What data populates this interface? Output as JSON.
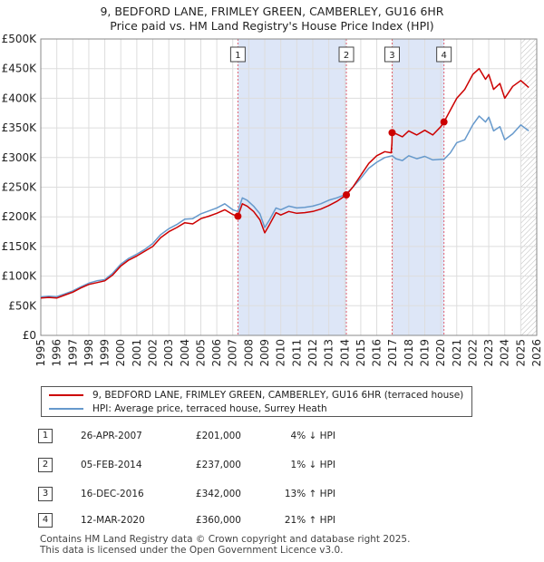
{
  "title": "9, BEDFORD LANE, FRIMLEY GREEN, CAMBERLEY, GU16 6HR",
  "subtitle": "Price paid vs. HM Land Registry's House Price Index (HPI)",
  "legend": {
    "property_label": "9, BEDFORD LANE, FRIMLEY GREEN, CAMBERLEY, GU16 6HR (terraced house)",
    "hpi_label": "HPI: Average price, terraced house, Surrey Heath"
  },
  "colors": {
    "property": "#cc0000",
    "hpi": "#6699cc",
    "shade": "#dde6f7",
    "grid": "#dddddd"
  },
  "transactions": [
    {
      "num": "1",
      "date": "26-APR-2007",
      "price": "£201,000",
      "hpi": "4% ↓ HPI"
    },
    {
      "num": "2",
      "date": "05-FEB-2014",
      "price": "£237,000",
      "hpi": "1% ↓ HPI"
    },
    {
      "num": "3",
      "date": "16-DEC-2016",
      "price": "£342,000",
      "hpi": "13% ↑ HPI"
    },
    {
      "num": "4",
      "date": "12-MAR-2020",
      "price": "£360,000",
      "hpi": "21% ↑ HPI"
    }
  ],
  "footer": {
    "line1": "Contains HM Land Registry data © Crown copyright and database right 2025.",
    "line2": "This data is licensed under the Open Government Licence v3.0."
  },
  "chart_data": {
    "type": "line",
    "xlim": [
      1995,
      2026
    ],
    "ylim": [
      0,
      500000
    ],
    "x_ticks": [
      "1995",
      "1996",
      "1997",
      "1998",
      "1999",
      "2000",
      "2001",
      "2002",
      "2003",
      "2004",
      "2005",
      "2006",
      "2007",
      "2008",
      "2009",
      "2010",
      "2011",
      "2012",
      "2013",
      "2014",
      "2015",
      "2016",
      "2017",
      "2018",
      "2019",
      "2020",
      "2021",
      "2022",
      "2023",
      "2024",
      "2025",
      "2026"
    ],
    "y_ticks": [
      {
        "value": 0,
        "label": "£0"
      },
      {
        "value": 50000,
        "label": "£50K"
      },
      {
        "value": 100000,
        "label": "£100K"
      },
      {
        "value": 150000,
        "label": "£150K"
      },
      {
        "value": 200000,
        "label": "£200K"
      },
      {
        "value": 250000,
        "label": "£250K"
      },
      {
        "value": 300000,
        "label": "£300K"
      },
      {
        "value": 350000,
        "label": "£350K"
      },
      {
        "value": 400000,
        "label": "£400K"
      },
      {
        "value": 450000,
        "label": "£450K"
      },
      {
        "value": 500000,
        "label": "£500K"
      }
    ],
    "shaded_periods": [
      [
        2007.32,
        2014.1
      ],
      [
        2016.96,
        2020.2
      ]
    ],
    "sale_markers": [
      {
        "label": "1",
        "x": 2007.32,
        "y": 201000
      },
      {
        "label": "2",
        "x": 2014.1,
        "y": 237000
      },
      {
        "label": "3",
        "x": 2016.96,
        "y": 342000
      },
      {
        "label": "4",
        "x": 2020.2,
        "y": 360000
      }
    ],
    "hatch_from": 2025.0,
    "series": [
      {
        "name": "HPI: Average price, terraced house, Surrey Heath",
        "x": [
          1995,
          1995.5,
          1996,
          1996.5,
          1997,
          1997.5,
          1998,
          1998.5,
          1999,
          1999.5,
          2000,
          2000.5,
          2001,
          2001.5,
          2002,
          2002.5,
          2003,
          2003.5,
          2004,
          2004.5,
          2005,
          2005.5,
          2006,
          2006.5,
          2007,
          2007.32,
          2007.6,
          2007.9,
          2008.3,
          2008.7,
          2009.0,
          2009.3,
          2009.7,
          2010.0,
          2010.5,
          2011,
          2011.5,
          2012,
          2012.5,
          2013,
          2013.5,
          2014,
          2014.1,
          2014.5,
          2015,
          2015.5,
          2016,
          2016.5,
          2016.96,
          2017.2,
          2017.6,
          2018,
          2018.5,
          2019,
          2019.5,
          2020,
          2020.2,
          2020.6,
          2021,
          2021.5,
          2022,
          2022.4,
          2022.8,
          2023.0,
          2023.3,
          2023.7,
          2024,
          2024.5,
          2025,
          2025.5
        ],
        "y": [
          65000,
          66000,
          65500,
          70000,
          75000,
          82000,
          88000,
          92000,
          94000,
          105000,
          120000,
          130000,
          137000,
          145000,
          155000,
          170000,
          180000,
          187000,
          196000,
          197000,
          205000,
          210000,
          215000,
          222000,
          212000,
          209000,
          232000,
          228000,
          218000,
          205000,
          182000,
          195000,
          215000,
          212000,
          218000,
          215000,
          216000,
          218000,
          222000,
          228000,
          232000,
          237000,
          239000,
          250000,
          265000,
          282000,
          292000,
          300000,
          303000,
          298000,
          295000,
          303000,
          298000,
          302000,
          296000,
          297000,
          297000,
          308000,
          325000,
          330000,
          355000,
          370000,
          360000,
          368000,
          345000,
          352000,
          330000,
          340000,
          355000,
          345000
        ]
      },
      {
        "name": "9, BEDFORD LANE, FRIMLEY GREEN, CAMBERLEY, GU16 6HR (terraced house)",
        "x": [
          1995,
          1995.5,
          1996,
          1996.5,
          1997,
          1997.5,
          1998,
          1998.5,
          1999,
          1999.5,
          2000,
          2000.5,
          2001,
          2001.5,
          2002,
          2002.5,
          2003,
          2003.5,
          2004,
          2004.5,
          2005,
          2005.5,
          2006,
          2006.5,
          2007,
          2007.31,
          2007.32,
          2007.6,
          2007.9,
          2008.3,
          2008.7,
          2009.0,
          2009.3,
          2009.7,
          2010.0,
          2010.5,
          2011,
          2011.5,
          2012,
          2012.5,
          2013,
          2013.5,
          2014,
          2014.09,
          2014.1,
          2014.5,
          2015,
          2015.5,
          2016,
          2016.5,
          2016.9,
          2016.95,
          2016.96,
          2017.2,
          2017.6,
          2018,
          2018.5,
          2019,
          2019.5,
          2020,
          2020.19,
          2020.2,
          2020.6,
          2021,
          2021.5,
          2022,
          2022.4,
          2022.8,
          2023.0,
          2023.3,
          2023.7,
          2024,
          2024.5,
          2025,
          2025.5
        ],
        "y": [
          63000,
          64000,
          63000,
          68000,
          73000,
          80000,
          86000,
          89000,
          92000,
          102000,
          117000,
          127000,
          134000,
          142000,
          150000,
          165000,
          175000,
          182000,
          190000,
          188000,
          197000,
          201000,
          206000,
          212000,
          204000,
          201000,
          201000,
          222000,
          218000,
          209000,
          195000,
          173000,
          187000,
          207000,
          203000,
          209000,
          206000,
          207000,
          209000,
          213000,
          219000,
          226000,
          235000,
          237000,
          237000,
          250000,
          270000,
          290000,
          303000,
          310000,
          308000,
          325000,
          342000,
          340000,
          335000,
          345000,
          338000,
          346000,
          338000,
          352000,
          360000,
          360000,
          380000,
          400000,
          415000,
          440000,
          450000,
          432000,
          440000,
          415000,
          425000,
          400000,
          420000,
          430000,
          418000
        ]
      }
    ]
  }
}
